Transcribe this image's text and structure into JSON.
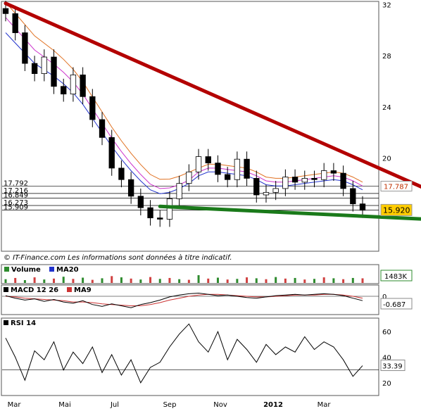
{
  "chart_data": [
    {
      "type": "candlestick",
      "panel": "price",
      "series": [
        {
          "name": "",
          "values": [
            31.3,
            29.8,
            27.4,
            26.6,
            27.9,
            25.6,
            25.0,
            26.5,
            24.8,
            23.0,
            21.6,
            19.2,
            18.3,
            17.0,
            16.1,
            15.3,
            15.2,
            16.8,
            18.0,
            18.9,
            20.1,
            19.6,
            18.7,
            18.3,
            19.9,
            18.4,
            17.1,
            17.3,
            17.6,
            18.5,
            18.1,
            18.4,
            18.3,
            19.0,
            18.8,
            17.6,
            16.4,
            15.9
          ]
        },
        {
          "name": "MA20",
          "values": [
            29.8,
            29.0,
            28.2,
            27.4,
            26.9,
            26.4,
            25.8,
            25.1,
            24.2,
            23.1,
            22.0,
            20.9,
            19.9,
            19.0,
            18.2,
            17.5,
            17.2,
            17.3,
            17.6,
            18.0,
            18.6,
            18.9,
            18.9,
            18.8,
            18.7,
            18.6,
            18.3,
            17.9,
            17.8,
            17.8,
            17.9,
            18.0,
            18.1,
            18.2,
            18.3,
            18.2,
            17.9,
            17.5
          ]
        }
      ],
      "x_ticks": [
        "Mar",
        "Mai",
        "Jul",
        "Sep",
        "Nov",
        "2012",
        "Mar"
      ],
      "y_ticks": [
        32,
        28,
        24,
        20
      ],
      "levels": [
        "17.792",
        "17.216",
        "16.849",
        "16.273",
        "15.909"
      ],
      "last_labels": [
        "17.787",
        "15.920"
      ],
      "lines": [
        {
          "name": "resistance",
          "color": "#b30000",
          "from": [
            0,
            32.1
          ],
          "to": [
            43.5,
            17.6
          ]
        },
        {
          "name": "support",
          "color": "#1a7a1a",
          "from": [
            16,
            16.2
          ],
          "to": [
            43.5,
            15.2
          ]
        }
      ],
      "colors": {
        "ma20": "#2233cc",
        "ma50": "#cc33cc",
        "ma100": "#e07020",
        "last_price_bg": "#ffcc00"
      },
      "footer": "© IT-Finance.com   Les informations sont données à titre indicatif."
    },
    {
      "type": "bar",
      "panel": "volume",
      "legend": [
        "Volume",
        "MA20"
      ],
      "last_label": "1483K",
      "values": [
        1.2,
        1.6,
        0.9,
        1.8,
        1.1,
        1.4,
        2.0,
        1.3,
        1.7,
        1.0,
        1.5,
        2.2,
        1.8,
        1.4,
        1.1,
        1.9,
        1.3,
        1.6,
        1.2,
        1.0,
        2.5,
        1.4,
        1.7,
        1.1,
        1.3,
        1.8,
        1.5,
        1.2,
        1.9,
        1.4,
        1.6,
        1.1,
        1.3,
        1.8,
        1.5,
        1.2,
        1.6,
        1.483
      ]
    },
    {
      "type": "line",
      "panel": "macd",
      "legend": [
        "MACD 12 26",
        "MA9"
      ],
      "y_ticks": [
        0
      ],
      "last_label": "-0.687",
      "series": [
        {
          "name": "MACD 12 26",
          "values": [
            0.1,
            -0.3,
            -0.6,
            -0.4,
            -0.8,
            -0.5,
            -0.9,
            -1.1,
            -0.7,
            -1.3,
            -1.6,
            -1.2,
            -1.5,
            -1.8,
            -1.3,
            -1.0,
            -0.6,
            -0.1,
            0.2,
            0.4,
            0.5,
            0.3,
            0.1,
            0.2,
            0.0,
            -0.2,
            -0.3,
            -0.1,
            0.1,
            0.2,
            0.3,
            0.2,
            0.3,
            0.4,
            0.3,
            0.1,
            -0.3,
            -0.687
          ]
        },
        {
          "name": "MA9",
          "values": [
            0.0,
            -0.1,
            -0.3,
            -0.4,
            -0.5,
            -0.6,
            -0.7,
            -0.9,
            -0.9,
            -1.0,
            -1.2,
            -1.3,
            -1.4,
            -1.5,
            -1.5,
            -1.3,
            -1.0,
            -0.6,
            -0.3,
            0.0,
            0.2,
            0.3,
            0.3,
            0.2,
            0.1,
            0.0,
            -0.1,
            -0.1,
            0.0,
            0.1,
            0.2,
            0.2,
            0.2,
            0.3,
            0.3,
            0.2,
            0.0,
            -0.3
          ]
        }
      ]
    },
    {
      "type": "line",
      "panel": "rsi",
      "legend": [
        "RSI 14"
      ],
      "y_ticks": [
        60,
        40,
        20
      ],
      "ylim": [
        15,
        70
      ],
      "last_label": "33.39",
      "series": [
        {
          "name": "RSI 14",
          "values": [
            55,
            40,
            22,
            45,
            38,
            52,
            30,
            44,
            35,
            48,
            28,
            42,
            26,
            38,
            20,
            32,
            36,
            48,
            58,
            66,
            52,
            44,
            60,
            38,
            54,
            46,
            36,
            50,
            42,
            48,
            44,
            56,
            46,
            52,
            48,
            38,
            25,
            33.39
          ]
        }
      ]
    }
  ]
}
